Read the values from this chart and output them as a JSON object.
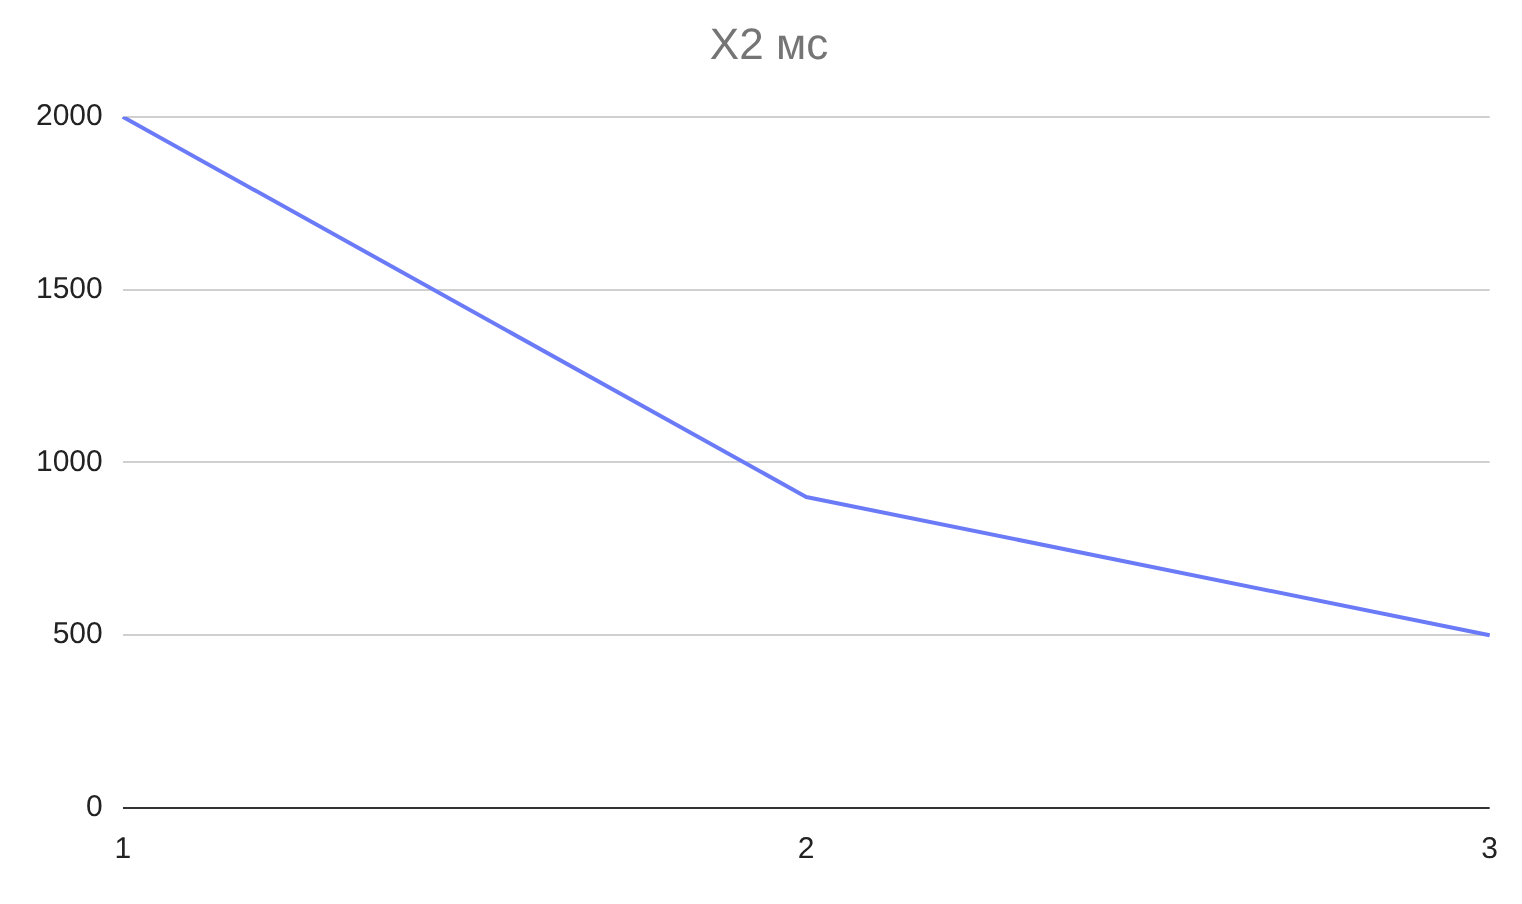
{
  "chart_data": {
    "type": "line",
    "title": "X2 мс",
    "categories": [
      "1",
      "2",
      "3"
    ],
    "series": [
      {
        "color": "#6b7bf7",
        "values": [
          2000,
          900,
          500
        ]
      }
    ],
    "ylim": [
      0,
      2000
    ],
    "yticks": [
      0,
      500,
      1000,
      1500,
      2000
    ],
    "grid": "y",
    "legend": false,
    "marker": "none",
    "line_style": "solid"
  }
}
